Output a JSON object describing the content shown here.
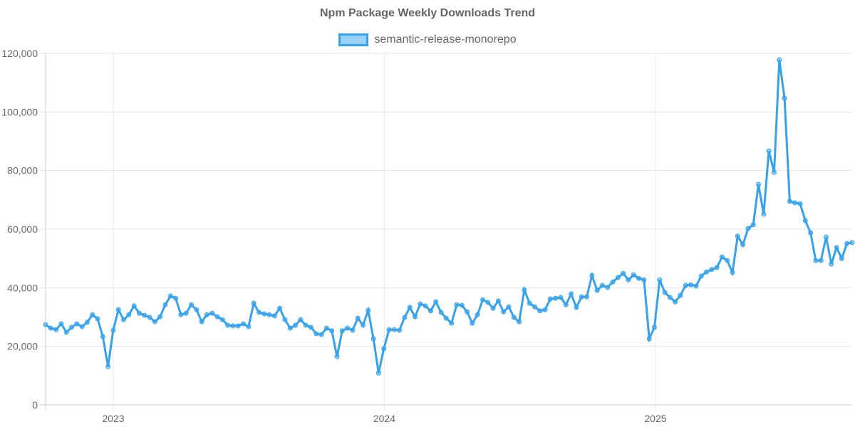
{
  "chart_data": {
    "type": "line",
    "title": "Npm Package Weekly Downloads Trend",
    "legend": {
      "position": "top",
      "entries": [
        "semantic-release-monorepo"
      ]
    },
    "series": [
      {
        "name": "semantic-release-monorepo",
        "color": "#36a2eb",
        "values": [
          27400,
          26200,
          25700,
          27700,
          24800,
          26500,
          27700,
          26700,
          28200,
          30800,
          29400,
          23300,
          13100,
          25500,
          32500,
          29100,
          30800,
          33800,
          31300,
          30600,
          29900,
          28400,
          30100,
          34200,
          37200,
          36400,
          30800,
          31300,
          34200,
          32500,
          28400,
          30800,
          31300,
          30100,
          29100,
          27200,
          27000,
          27000,
          27700,
          26700,
          34700,
          31600,
          31100,
          30800,
          30400,
          33000,
          29100,
          26200,
          27200,
          29100,
          27200,
          26500,
          24300,
          24000,
          26200,
          25300,
          16500,
          25300,
          26200,
          25500,
          29600,
          27200,
          32300,
          22600,
          10900,
          19200,
          25700,
          25700,
          25500,
          29900,
          33300,
          30100,
          34500,
          33800,
          32100,
          35200,
          31600,
          29600,
          27900,
          34200,
          34000,
          31800,
          27900,
          30800,
          35900,
          35000,
          33000,
          35500,
          31800,
          33500,
          29900,
          28400,
          39300,
          34700,
          33500,
          32100,
          32500,
          36200,
          36400,
          36700,
          34200,
          37900,
          33300,
          36900,
          36900,
          44200,
          39100,
          40800,
          40100,
          42000,
          43500,
          44900,
          42700,
          44400,
          43200,
          42700,
          22600,
          26500,
          42700,
          38400,
          36700,
          35200,
          37400,
          40800,
          41000,
          40600,
          44000,
          45400,
          46200,
          46900,
          50500,
          49300,
          45200,
          57600,
          54700,
          60200,
          61500,
          75300,
          65100,
          86700,
          79400,
          117800,
          104700,
          69500,
          69000,
          68700,
          62900,
          58800,
          49300,
          49300,
          57300,
          48100,
          53700,
          50000,
          55100,
          55400
        ]
      }
    ],
    "x_ticks": [
      {
        "label": "2023",
        "week_index": 13
      },
      {
        "label": "2024",
        "week_index": 65.1
      },
      {
        "label": "2025",
        "week_index": 117.2
      }
    ],
    "y_ticks": [
      {
        "label": "0",
        "value": 0
      },
      {
        "label": "20,000",
        "value": 20000
      },
      {
        "label": "40,000",
        "value": 40000
      },
      {
        "label": "60,000",
        "value": 60000
      },
      {
        "label": "80,000",
        "value": 80000
      },
      {
        "label": "100,000",
        "value": 100000
      },
      {
        "label": "120,000",
        "value": 120000
      }
    ],
    "ylim": [
      0,
      120000
    ],
    "xlabel": "",
    "ylabel": "",
    "grid": true
  }
}
